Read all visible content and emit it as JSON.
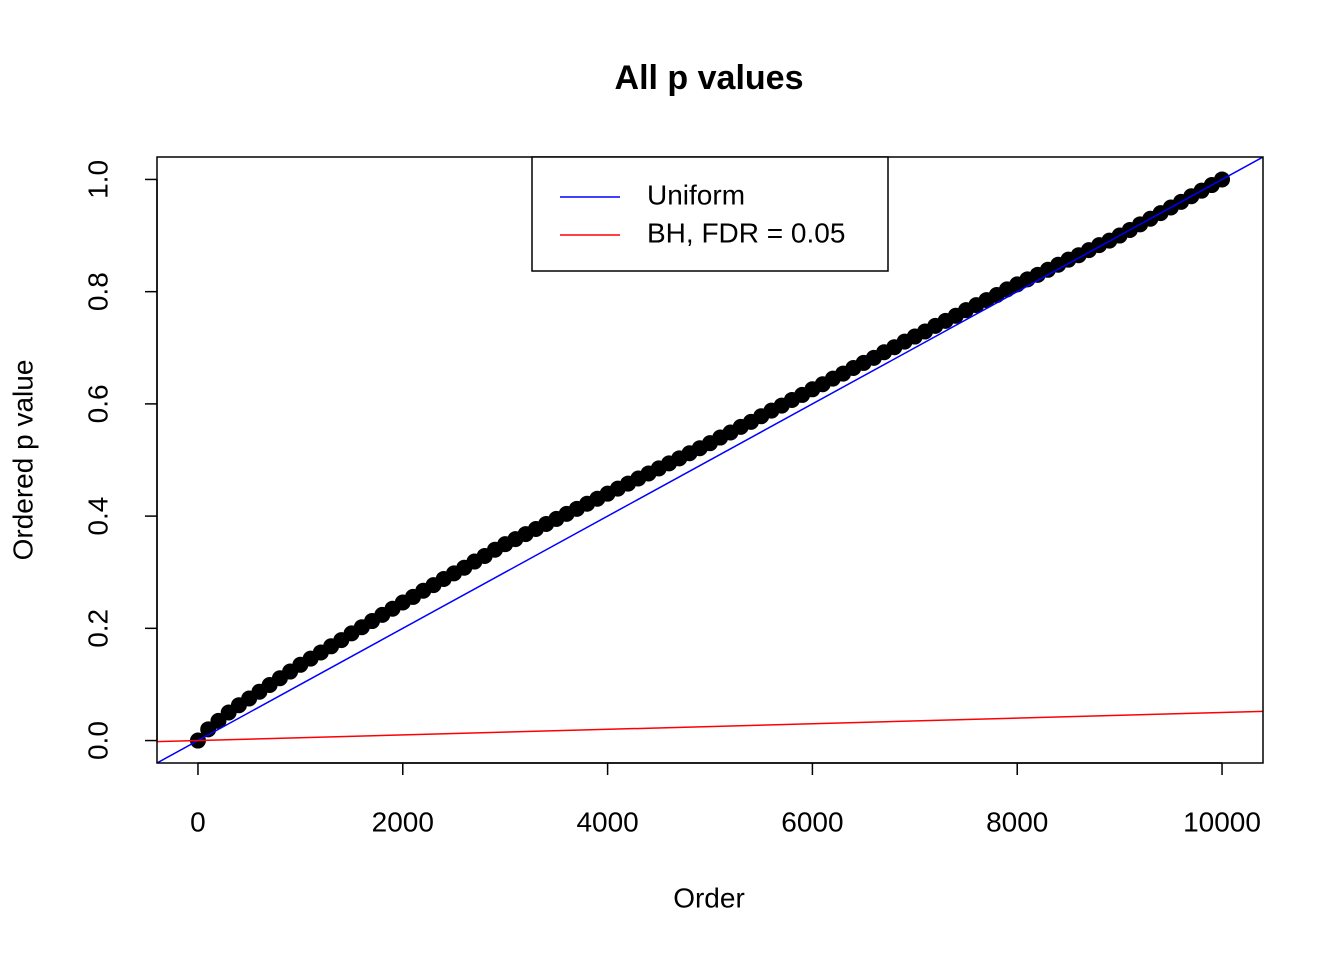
{
  "chart_data": {
    "type": "scatter",
    "title": "All p values",
    "xlabel": "Order",
    "ylabel": "Ordered p value",
    "point_color": "#000000",
    "x": [
      0,
      100,
      200,
      300,
      400,
      500,
      600,
      700,
      800,
      900,
      1000,
      1100,
      1200,
      1300,
      1400,
      1500,
      1600,
      1700,
      1800,
      1900,
      2000,
      2100,
      2200,
      2300,
      2400,
      2500,
      2600,
      2700,
      2800,
      2900,
      3000,
      3100,
      3200,
      3300,
      3400,
      3500,
      3600,
      3700,
      3800,
      3900,
      4000,
      4100,
      4200,
      4300,
      4400,
      4500,
      4600,
      4700,
      4800,
      4900,
      5000,
      5100,
      5200,
      5300,
      5400,
      5500,
      5600,
      5700,
      5800,
      5900,
      6000,
      6100,
      6200,
      6300,
      6400,
      6500,
      6600,
      6700,
      6800,
      6900,
      7000,
      7100,
      7200,
      7300,
      7400,
      7500,
      7600,
      7700,
      7800,
      7900,
      8000,
      8100,
      8200,
      8300,
      8400,
      8500,
      8600,
      8700,
      8800,
      8900,
      9000,
      9100,
      9200,
      9300,
      9400,
      9500,
      9600,
      9700,
      9800,
      9900,
      10000
    ],
    "values": [
      0,
      0.02,
      0.035,
      0.05,
      0.063,
      0.075,
      0.087,
      0.099,
      0.111,
      0.123,
      0.135,
      0.146,
      0.157,
      0.168,
      0.179,
      0.191,
      0.202,
      0.213,
      0.224,
      0.235,
      0.246,
      0.256,
      0.267,
      0.277,
      0.288,
      0.298,
      0.308,
      0.319,
      0.329,
      0.34,
      0.35,
      0.359,
      0.368,
      0.377,
      0.386,
      0.395,
      0.404,
      0.413,
      0.422,
      0.431,
      0.44,
      0.449,
      0.458,
      0.467,
      0.476,
      0.485,
      0.494,
      0.503,
      0.512,
      0.521,
      0.53,
      0.54,
      0.549,
      0.559,
      0.568,
      0.578,
      0.588,
      0.597,
      0.607,
      0.616,
      0.626,
      0.635,
      0.645,
      0.654,
      0.664,
      0.673,
      0.682,
      0.692,
      0.701,
      0.711,
      0.72,
      0.729,
      0.739,
      0.748,
      0.757,
      0.767,
      0.776,
      0.785,
      0.794,
      0.804,
      0.813,
      0.822,
      0.83,
      0.839,
      0.848,
      0.857,
      0.865,
      0.874,
      0.883,
      0.891,
      0.9,
      0.91,
      0.92,
      0.93,
      0.94,
      0.95,
      0.96,
      0.97,
      0.98,
      0.99,
      1.0
    ],
    "lines": [
      {
        "name": "Uniform",
        "color": "#0000ff",
        "intercept": 0,
        "slope": 0.0001
      },
      {
        "name": "BH, FDR = 0.05",
        "color": "#ff0000",
        "intercept": 0,
        "slope": 5e-06
      }
    ],
    "legend": "top",
    "xlim": [
      -400,
      10400
    ],
    "xticks": [
      0,
      2000,
      4000,
      6000,
      8000,
      10000
    ],
    "ylim": [
      -0.04,
      1.04
    ],
    "yticks": [
      {
        "value": 0,
        "label": "0.0"
      },
      0.2,
      0.4,
      0.6,
      0.8,
      {
        "value": 1,
        "label": "1.0"
      }
    ]
  }
}
